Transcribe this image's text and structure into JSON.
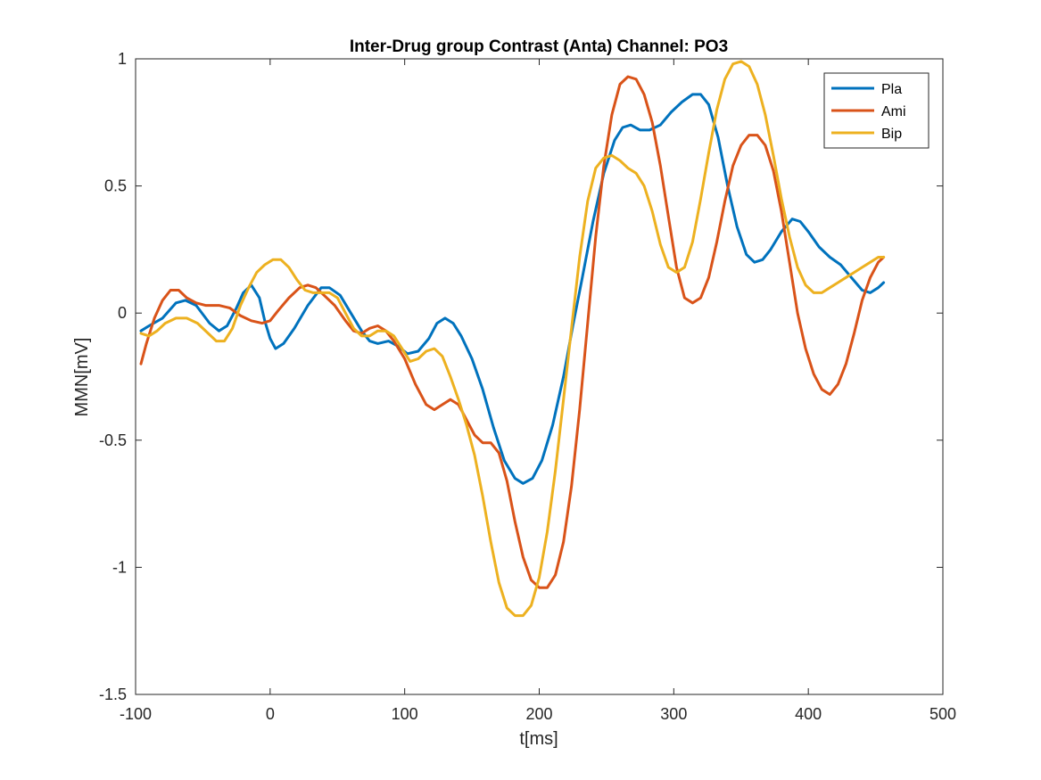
{
  "chart_data": {
    "type": "line",
    "title": "Inter-Drug group Contrast (Anta) Channel: PO3",
    "xlabel": "t[ms]",
    "ylabel": "MMN[mV]",
    "xlim": [
      -100,
      500
    ],
    "ylim": [
      -1.5,
      1
    ],
    "xticks": [
      -100,
      0,
      100,
      200,
      300,
      400,
      500
    ],
    "yticks": [
      -1.5,
      -1,
      -0.5,
      0,
      0.5,
      1
    ],
    "xtick_labels": [
      "-100",
      "0",
      "100",
      "200",
      "300",
      "400",
      "500"
    ],
    "ytick_labels": [
      "-1.5",
      "-1",
      "-0.5",
      "0",
      "0.5",
      "1"
    ],
    "grid": false,
    "legend_position": "top-right",
    "series": [
      {
        "name": "Pla",
        "color": "#0072BD",
        "points": [
          [
            -96,
            -0.07
          ],
          [
            -90,
            -0.05
          ],
          [
            -80,
            -0.02
          ],
          [
            -70,
            0.04
          ],
          [
            -63,
            0.05
          ],
          [
            -55,
            0.03
          ],
          [
            -45,
            -0.04
          ],
          [
            -38,
            -0.07
          ],
          [
            -32,
            -0.05
          ],
          [
            -25,
            0.02
          ],
          [
            -20,
            0.08
          ],
          [
            -14,
            0.11
          ],
          [
            -8,
            0.06
          ],
          [
            -4,
            -0.03
          ],
          [
            0,
            -0.1
          ],
          [
            4,
            -0.14
          ],
          [
            10,
            -0.12
          ],
          [
            18,
            -0.06
          ],
          [
            28,
            0.03
          ],
          [
            38,
            0.1
          ],
          [
            44,
            0.1
          ],
          [
            52,
            0.07
          ],
          [
            60,
            0.0
          ],
          [
            68,
            -0.07
          ],
          [
            74,
            -0.11
          ],
          [
            80,
            -0.12
          ],
          [
            88,
            -0.11
          ],
          [
            95,
            -0.13
          ],
          [
            102,
            -0.16
          ],
          [
            110,
            -0.15
          ],
          [
            118,
            -0.1
          ],
          [
            124,
            -0.04
          ],
          [
            130,
            -0.02
          ],
          [
            136,
            -0.04
          ],
          [
            142,
            -0.09
          ],
          [
            150,
            -0.18
          ],
          [
            158,
            -0.3
          ],
          [
            166,
            -0.45
          ],
          [
            174,
            -0.58
          ],
          [
            182,
            -0.65
          ],
          [
            188,
            -0.67
          ],
          [
            195,
            -0.65
          ],
          [
            202,
            -0.58
          ],
          [
            210,
            -0.44
          ],
          [
            218,
            -0.25
          ],
          [
            225,
            -0.05
          ],
          [
            232,
            0.14
          ],
          [
            240,
            0.36
          ],
          [
            248,
            0.55
          ],
          [
            256,
            0.68
          ],
          [
            262,
            0.73
          ],
          [
            268,
            0.74
          ],
          [
            275,
            0.72
          ],
          [
            282,
            0.72
          ],
          [
            290,
            0.74
          ],
          [
            298,
            0.79
          ],
          [
            306,
            0.83
          ],
          [
            314,
            0.86
          ],
          [
            320,
            0.86
          ],
          [
            326,
            0.82
          ],
          [
            333,
            0.69
          ],
          [
            340,
            0.5
          ],
          [
            347,
            0.34
          ],
          [
            354,
            0.23
          ],
          [
            360,
            0.2
          ],
          [
            366,
            0.21
          ],
          [
            372,
            0.25
          ],
          [
            380,
            0.32
          ],
          [
            388,
            0.37
          ],
          [
            394,
            0.36
          ],
          [
            400,
            0.32
          ],
          [
            408,
            0.26
          ],
          [
            416,
            0.22
          ],
          [
            424,
            0.19
          ],
          [
            432,
            0.14
          ],
          [
            440,
            0.09
          ],
          [
            446,
            0.08
          ],
          [
            452,
            0.1
          ],
          [
            456,
            0.12
          ]
        ]
      },
      {
        "name": "Ami",
        "color": "#D95319",
        "points": [
          [
            -96,
            -0.2
          ],
          [
            -92,
            -0.12
          ],
          [
            -86,
            -0.02
          ],
          [
            -80,
            0.05
          ],
          [
            -74,
            0.09
          ],
          [
            -68,
            0.09
          ],
          [
            -62,
            0.06
          ],
          [
            -55,
            0.04
          ],
          [
            -48,
            0.03
          ],
          [
            -38,
            0.03
          ],
          [
            -30,
            0.02
          ],
          [
            -22,
            -0.01
          ],
          [
            -14,
            -0.03
          ],
          [
            -6,
            -0.04
          ],
          [
            0,
            -0.03
          ],
          [
            6,
            0.01
          ],
          [
            14,
            0.06
          ],
          [
            22,
            0.1
          ],
          [
            28,
            0.11
          ],
          [
            34,
            0.1
          ],
          [
            40,
            0.07
          ],
          [
            48,
            0.03
          ],
          [
            56,
            -0.03
          ],
          [
            62,
            -0.07
          ],
          [
            68,
            -0.08
          ],
          [
            74,
            -0.06
          ],
          [
            80,
            -0.05
          ],
          [
            86,
            -0.07
          ],
          [
            92,
            -0.11
          ],
          [
            100,
            -0.18
          ],
          [
            108,
            -0.28
          ],
          [
            116,
            -0.36
          ],
          [
            122,
            -0.38
          ],
          [
            128,
            -0.36
          ],
          [
            134,
            -0.34
          ],
          [
            140,
            -0.36
          ],
          [
            146,
            -0.42
          ],
          [
            152,
            -0.48
          ],
          [
            158,
            -0.51
          ],
          [
            164,
            -0.51
          ],
          [
            170,
            -0.55
          ],
          [
            176,
            -0.66
          ],
          [
            182,
            -0.82
          ],
          [
            188,
            -0.96
          ],
          [
            194,
            -1.05
          ],
          [
            200,
            -1.08
          ],
          [
            206,
            -1.08
          ],
          [
            212,
            -1.03
          ],
          [
            218,
            -0.9
          ],
          [
            224,
            -0.68
          ],
          [
            230,
            -0.38
          ],
          [
            236,
            -0.04
          ],
          [
            242,
            0.3
          ],
          [
            248,
            0.58
          ],
          [
            254,
            0.78
          ],
          [
            260,
            0.9
          ],
          [
            266,
            0.93
          ],
          [
            272,
            0.92
          ],
          [
            278,
            0.86
          ],
          [
            284,
            0.75
          ],
          [
            290,
            0.58
          ],
          [
            296,
            0.38
          ],
          [
            302,
            0.18
          ],
          [
            308,
            0.06
          ],
          [
            314,
            0.04
          ],
          [
            320,
            0.06
          ],
          [
            326,
            0.14
          ],
          [
            332,
            0.28
          ],
          [
            338,
            0.44
          ],
          [
            344,
            0.58
          ],
          [
            350,
            0.66
          ],
          [
            356,
            0.7
          ],
          [
            362,
            0.7
          ],
          [
            368,
            0.66
          ],
          [
            374,
            0.56
          ],
          [
            380,
            0.4
          ],
          [
            386,
            0.2
          ],
          [
            392,
            0.0
          ],
          [
            398,
            -0.14
          ],
          [
            404,
            -0.24
          ],
          [
            410,
            -0.3
          ],
          [
            416,
            -0.32
          ],
          [
            422,
            -0.28
          ],
          [
            428,
            -0.2
          ],
          [
            434,
            -0.08
          ],
          [
            440,
            0.05
          ],
          [
            446,
            0.14
          ],
          [
            452,
            0.2
          ],
          [
            456,
            0.22
          ]
        ]
      },
      {
        "name": "Bip",
        "color": "#EDB120",
        "points": [
          [
            -96,
            -0.08
          ],
          [
            -90,
            -0.09
          ],
          [
            -84,
            -0.07
          ],
          [
            -78,
            -0.04
          ],
          [
            -70,
            -0.02
          ],
          [
            -62,
            -0.02
          ],
          [
            -54,
            -0.04
          ],
          [
            -46,
            -0.08
          ],
          [
            -40,
            -0.11
          ],
          [
            -34,
            -0.11
          ],
          [
            -28,
            -0.06
          ],
          [
            -22,
            0.03
          ],
          [
            -16,
            0.1
          ],
          [
            -10,
            0.16
          ],
          [
            -4,
            0.19
          ],
          [
            2,
            0.21
          ],
          [
            8,
            0.21
          ],
          [
            14,
            0.18
          ],
          [
            20,
            0.13
          ],
          [
            26,
            0.09
          ],
          [
            32,
            0.08
          ],
          [
            38,
            0.08
          ],
          [
            44,
            0.08
          ],
          [
            50,
            0.06
          ],
          [
            56,
            0.0
          ],
          [
            62,
            -0.06
          ],
          [
            68,
            -0.09
          ],
          [
            74,
            -0.09
          ],
          [
            80,
            -0.07
          ],
          [
            86,
            -0.07
          ],
          [
            92,
            -0.09
          ],
          [
            98,
            -0.14
          ],
          [
            104,
            -0.19
          ],
          [
            110,
            -0.18
          ],
          [
            116,
            -0.15
          ],
          [
            122,
            -0.14
          ],
          [
            128,
            -0.17
          ],
          [
            134,
            -0.25
          ],
          [
            140,
            -0.34
          ],
          [
            146,
            -0.44
          ],
          [
            152,
            -0.56
          ],
          [
            158,
            -0.72
          ],
          [
            164,
            -0.9
          ],
          [
            170,
            -1.06
          ],
          [
            176,
            -1.16
          ],
          [
            182,
            -1.19
          ],
          [
            188,
            -1.19
          ],
          [
            194,
            -1.15
          ],
          [
            200,
            -1.04
          ],
          [
            206,
            -0.86
          ],
          [
            212,
            -0.62
          ],
          [
            218,
            -0.34
          ],
          [
            224,
            -0.06
          ],
          [
            230,
            0.22
          ],
          [
            236,
            0.44
          ],
          [
            242,
            0.57
          ],
          [
            248,
            0.61
          ],
          [
            254,
            0.62
          ],
          [
            260,
            0.6
          ],
          [
            266,
            0.57
          ],
          [
            272,
            0.55
          ],
          [
            278,
            0.5
          ],
          [
            284,
            0.4
          ],
          [
            290,
            0.27
          ],
          [
            296,
            0.18
          ],
          [
            302,
            0.16
          ],
          [
            308,
            0.18
          ],
          [
            314,
            0.28
          ],
          [
            320,
            0.45
          ],
          [
            326,
            0.63
          ],
          [
            332,
            0.8
          ],
          [
            338,
            0.92
          ],
          [
            344,
            0.98
          ],
          [
            350,
            0.99
          ],
          [
            356,
            0.97
          ],
          [
            362,
            0.9
          ],
          [
            368,
            0.78
          ],
          [
            374,
            0.62
          ],
          [
            380,
            0.45
          ],
          [
            386,
            0.3
          ],
          [
            392,
            0.18
          ],
          [
            398,
            0.11
          ],
          [
            404,
            0.08
          ],
          [
            410,
            0.08
          ],
          [
            416,
            0.1
          ],
          [
            422,
            0.12
          ],
          [
            428,
            0.14
          ],
          [
            434,
            0.16
          ],
          [
            440,
            0.18
          ],
          [
            446,
            0.2
          ],
          [
            452,
            0.22
          ],
          [
            456,
            0.22
          ]
        ]
      }
    ]
  }
}
